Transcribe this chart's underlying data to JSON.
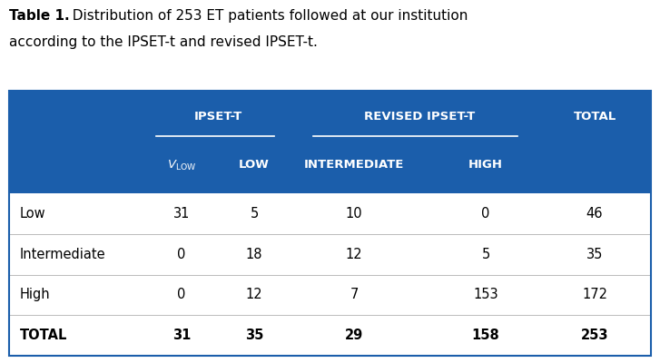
{
  "title_bold": "Table 1.",
  "title_rest": "  Distribution of 253 ET patients followed at our institution\naccording to the IPSET-t and revised IPSET-t.",
  "header_bg": "#1B5EAB",
  "header_text_color": "#FFFFFF",
  "divider_color": "#BBBBBB",
  "rows": [
    [
      "Low",
      "31",
      "5",
      "10",
      "0",
      "46"
    ],
    [
      "Intermediate",
      "0",
      "18",
      "12",
      "5",
      "35"
    ],
    [
      "High",
      "0",
      "12",
      "7",
      "153",
      "172"
    ],
    [
      "TOTAL",
      "31",
      "35",
      "29",
      "158",
      "253"
    ]
  ],
  "background_color": "#FFFFFF",
  "fig_width": 7.27,
  "fig_height": 4.0,
  "dpi": 100
}
